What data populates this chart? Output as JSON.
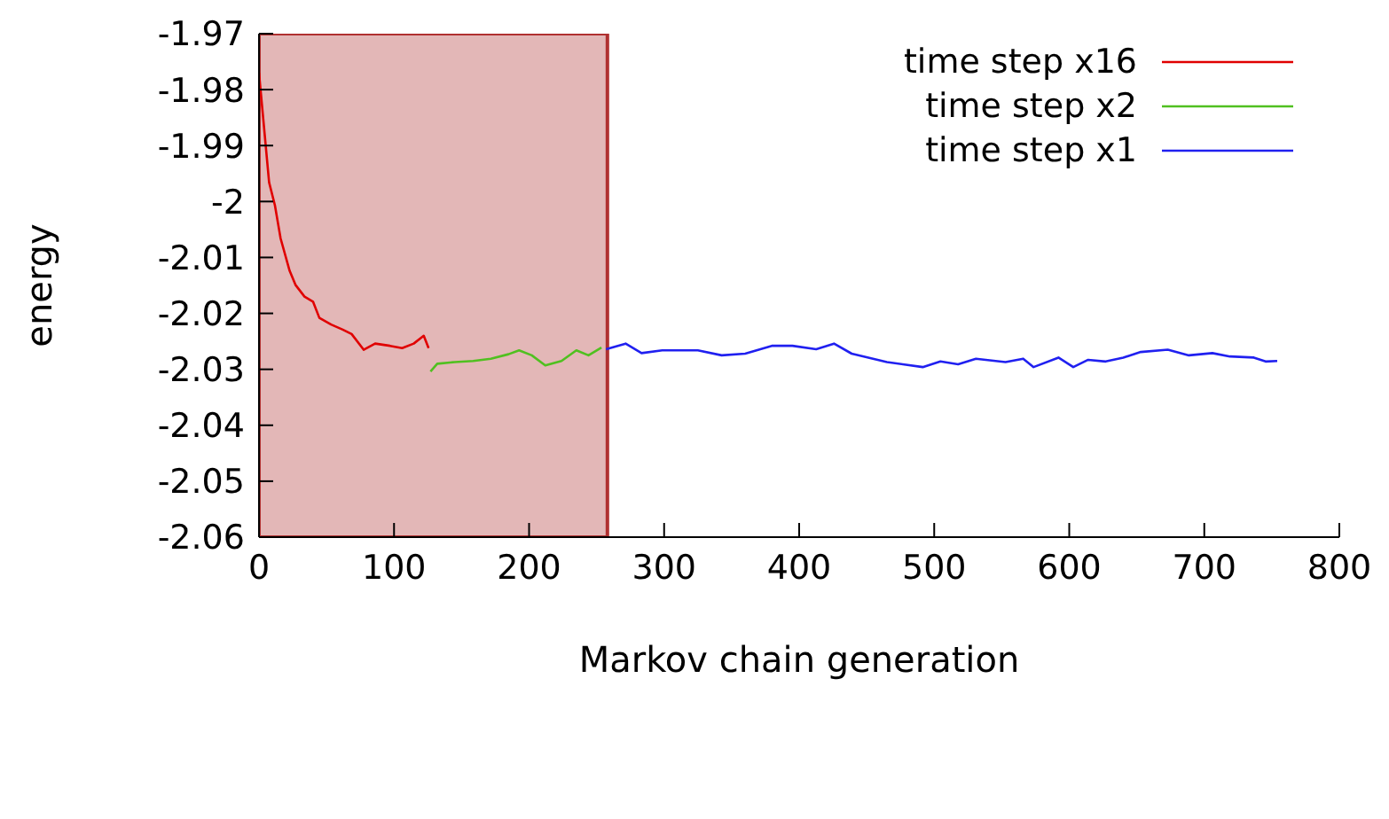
{
  "chart_data": {
    "type": "line",
    "xlabel": "Markov chain generation",
    "ylabel": "energy",
    "xlim": [
      0,
      800
    ],
    "xticks": [
      0,
      100,
      200,
      300,
      400,
      500,
      600,
      700,
      800
    ],
    "ylim": [
      -2.06,
      -1.97
    ],
    "yticks": [
      -2.06,
      -2.05,
      -2.04,
      -2.03,
      -2.02,
      -2.01,
      -2,
      -1.99,
      -1.98,
      -1.97
    ],
    "legend": "top right",
    "grid": false,
    "marker": "none",
    "line_style": "solid",
    "bands": [
      {
        "axis": "x",
        "from": 0,
        "to": 258,
        "color": "#b03030"
      }
    ],
    "series": [
      {
        "name": "time step x16",
        "color": "#e00000",
        "x": [
          0,
          7.5,
          11.8,
          16,
          22.7,
          27,
          33.7,
          40,
          44.7,
          53.4,
          62,
          68.6,
          77.5,
          86,
          97,
          106,
          114.6,
          122,
          125.6
        ],
        "values": [
          -1.977,
          -1.9966,
          -2.0007,
          -2.0066,
          -2.0124,
          -2.0149,
          -2.017,
          -2.0179,
          -2.0208,
          -2.022,
          -2.0229,
          -2.0237,
          -2.0265,
          -2.0254,
          -2.0258,
          -2.0262,
          -2.0254,
          -2.024,
          -2.0262
        ]
      },
      {
        "name": "time step x2",
        "color": "#50c020",
        "x": [
          127,
          132,
          145,
          158.6,
          171.7,
          184.8,
          192.6,
          202,
          212,
          224,
          235,
          244,
          253.6
        ],
        "values": [
          -2.0304,
          -2.029,
          -2.0287,
          -2.0285,
          -2.0281,
          -2.0273,
          -2.0266,
          -2.0275,
          -2.0293,
          -2.0285,
          -2.0266,
          -2.0275,
          -2.0261
        ]
      },
      {
        "name": "time step x1",
        "color": "#2020f0",
        "x": [
          257,
          271.5,
          283.3,
          298.6,
          325,
          342.6,
          360,
          379.7,
          395,
          412.6,
          425.8,
          438.9,
          465,
          491.5,
          504.6,
          517.7,
          530.9,
          552.8,
          565.9,
          573.6,
          592,
          603,
          614,
          627,
          640,
          653,
          673,
          688.6,
          706,
          719,
          736.7,
          745.4,
          754
        ],
        "values": [
          -2.0264,
          -2.0254,
          -2.0271,
          -2.0266,
          -2.0266,
          -2.0275,
          -2.0272,
          -2.0258,
          -2.0258,
          -2.0264,
          -2.0254,
          -2.0272,
          -2.0287,
          -2.0296,
          -2.0286,
          -2.0291,
          -2.0281,
          -2.0287,
          -2.0281,
          -2.0296,
          -2.0279,
          -2.0296,
          -2.0283,
          -2.0286,
          -2.0279,
          -2.0269,
          -2.0265,
          -2.0275,
          -2.0271,
          -2.0277,
          -2.0279,
          -2.0286,
          -2.0285
        ]
      }
    ]
  }
}
